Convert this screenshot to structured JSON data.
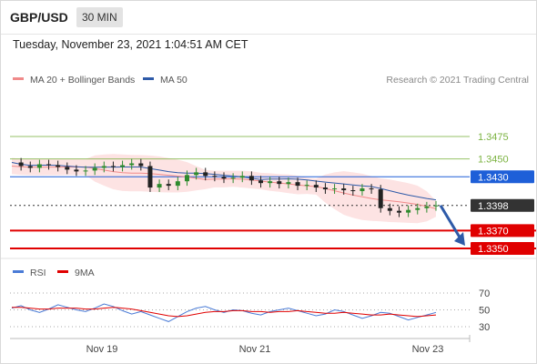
{
  "header": {
    "symbol": "GBP/USD",
    "timeframe": "30 MIN"
  },
  "datetime": "Tuesday, November 23, 2021 1:04:51 AM CET",
  "legend": {
    "items": [
      {
        "label": "MA 20 + Bollinger Bands",
        "color": "#f08a8a"
      },
      {
        "label": "MA 50",
        "color": "#2e5aa8"
      }
    ],
    "copyright": "Research © 2021 Trading Central"
  },
  "chart_data": [
    {
      "type": "candlestick",
      "title": "GBP/USD 30 MIN",
      "x_ticks": [
        "Nov 19",
        "Nov 21",
        "Nov 23"
      ],
      "last_price": 1.3398,
      "price_points": [
        1.3446,
        1.3442,
        1.344,
        1.3444,
        1.3443,
        1.3441,
        1.3438,
        1.3436,
        1.3437,
        1.344,
        1.3442,
        1.3441,
        1.3443,
        1.3445,
        1.3442,
        1.3418,
        1.3422,
        1.342,
        1.3425,
        1.3432,
        1.3435,
        1.3431,
        1.343,
        1.3428,
        1.3429,
        1.3431,
        1.3426,
        1.3423,
        1.3425,
        1.3422,
        1.3424,
        1.342,
        1.3421,
        1.3418,
        1.3416,
        1.3417,
        1.3415,
        1.3414,
        1.3417,
        1.3416,
        1.3395,
        1.3392,
        1.339,
        1.3393,
        1.3395,
        1.3397,
        1.3398
      ],
      "levels": [
        {
          "value": 1.3475,
          "label": "1.3475",
          "color": "#7cb342",
          "style": "solid-thin"
        },
        {
          "value": 1.345,
          "label": "1.3450",
          "color": "#7cb342",
          "style": "solid-thin"
        },
        {
          "value": 1.343,
          "label": "1.3430",
          "color": "#1e5fd8",
          "style": "solid"
        },
        {
          "value": 1.3398,
          "label": "1.3398",
          "color": "#333333",
          "style": "dotted"
        },
        {
          "value": 1.337,
          "label": "1.3370",
          "color": "#e00000",
          "style": "thick"
        },
        {
          "value": 1.335,
          "label": "1.3350",
          "color": "#e00000",
          "style": "thick"
        }
      ],
      "forecast": "down"
    },
    {
      "type": "line",
      "legend": [
        {
          "label": "RSI",
          "color": "#4a7bd6"
        },
        {
          "label": "9MA",
          "color": "#e00000"
        }
      ],
      "y_ticks": [
        "70",
        "50",
        "30"
      ],
      "ylim": [
        20,
        80
      ],
      "rsi": [
        52,
        55,
        50,
        47,
        51,
        56,
        53,
        50,
        48,
        52,
        57,
        54,
        49,
        45,
        48,
        44,
        40,
        36,
        42,
        48,
        52,
        54,
        50,
        47,
        50,
        49,
        46,
        44,
        48,
        50,
        52,
        49,
        46,
        43,
        45,
        50,
        48,
        44,
        40,
        43,
        47,
        46,
        42,
        38,
        41,
        44,
        47
      ],
      "ma9": [
        53,
        53,
        52,
        51,
        51,
        52,
        52,
        52,
        51,
        51,
        52,
        53,
        52,
        51,
        49,
        47,
        45,
        43,
        42,
        43,
        45,
        47,
        48,
        48,
        49,
        49,
        48,
        48,
        47,
        48,
        48,
        49,
        48,
        47,
        46,
        46,
        47,
        46,
        45,
        44,
        44,
        45,
        44,
        43,
        42,
        43,
        44
      ]
    }
  ]
}
